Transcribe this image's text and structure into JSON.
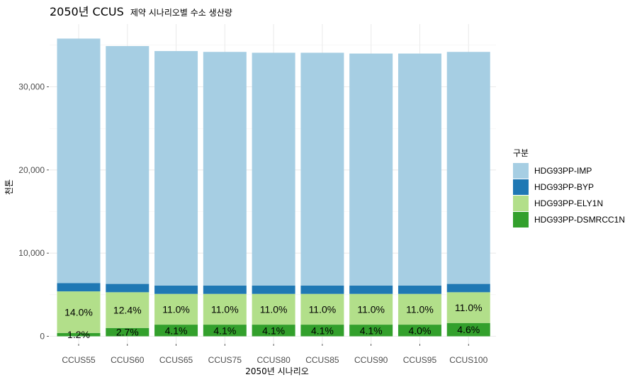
{
  "chart_data": {
    "type": "bar",
    "stacked": true,
    "title_main": "2050년 CCUS",
    "title_sub": "제약 시나리오별 수소 생산량",
    "xlabel": "2050년 시나리오",
    "ylabel": "천톤",
    "ylim": [
      0,
      36000
    ],
    "yticks": [
      0,
      10000,
      20000,
      30000
    ],
    "ytick_labels": [
      "0",
      "10,000",
      "20,000",
      "30,000"
    ],
    "grid": true,
    "legend_position": "right",
    "legend_title": "구분",
    "categories": [
      "CCUS55",
      "CCUS60",
      "CCUS65",
      "CCUS75",
      "CCUS80",
      "CCUS85",
      "CCUS90",
      "CCUS95",
      "CCUS100"
    ],
    "series": [
      {
        "name": "HDG93PP-DSMRCC1N",
        "color": "#33a02c",
        "values": [
          400,
          1000,
          1400,
          1400,
          1400,
          1400,
          1400,
          1400,
          1600
        ],
        "labels": [
          "1.2%",
          "2.7%",
          "4.1%",
          "4.1%",
          "4.1%",
          "4.1%",
          "4.1%",
          "4.0%",
          "4.6%"
        ]
      },
      {
        "name": "HDG93PP-ELY1N",
        "color": "#b2df8a",
        "values": [
          5000,
          4300,
          3700,
          3700,
          3700,
          3700,
          3700,
          3700,
          3700
        ],
        "labels": [
          "14.0%",
          "12.4%",
          "11.0%",
          "11.0%",
          "11.0%",
          "11.0%",
          "11.0%",
          "11.0%",
          "11.0%"
        ]
      },
      {
        "name": "HDG93PP-BYP",
        "color": "#1f78b4",
        "values": [
          1000,
          1000,
          1000,
          1000,
          1000,
          1000,
          1000,
          1000,
          1000
        ]
      },
      {
        "name": "HDG93PP-IMP",
        "color": "#a6cee3",
        "values": [
          29400,
          28600,
          28200,
          28100,
          28000,
          28000,
          27900,
          27900,
          27900
        ]
      }
    ],
    "legend_order": [
      "HDG93PP-IMP",
      "HDG93PP-BYP",
      "HDG93PP-ELY1N",
      "HDG93PP-DSMRCC1N"
    ]
  }
}
